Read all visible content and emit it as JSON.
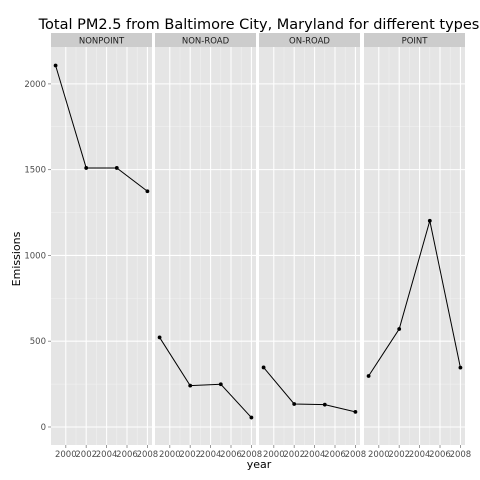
{
  "chart_data": {
    "type": "line",
    "title": "Total PM2.5 from Baltimore City, Maryland for different types",
    "xlabel": "year",
    "ylabel": "Emissions",
    "facet_labels": [
      "NONPOINT",
      "NON-ROAD",
      "ON-ROAD",
      "POINT"
    ],
    "x": [
      1999,
      2002,
      2005,
      2008
    ],
    "x_ticks": [
      "2000",
      "2002",
      "2004",
      "2006",
      "2008"
    ],
    "y_ticks": [
      "0",
      "500",
      "1000",
      "1500",
      "2000"
    ],
    "xlim": [
      1998.55,
      2008.45
    ],
    "ylim": [
      -105,
      2215
    ],
    "grid": true,
    "series": [
      {
        "values": [
          2107,
          1510,
          1510,
          1374
        ]
      },
      {
        "values": [
          522,
          241,
          249,
          55
        ]
      },
      {
        "values": [
          347,
          134,
          130,
          88
        ]
      },
      {
        "values": [
          297,
          571,
          1202,
          346
        ]
      }
    ]
  }
}
